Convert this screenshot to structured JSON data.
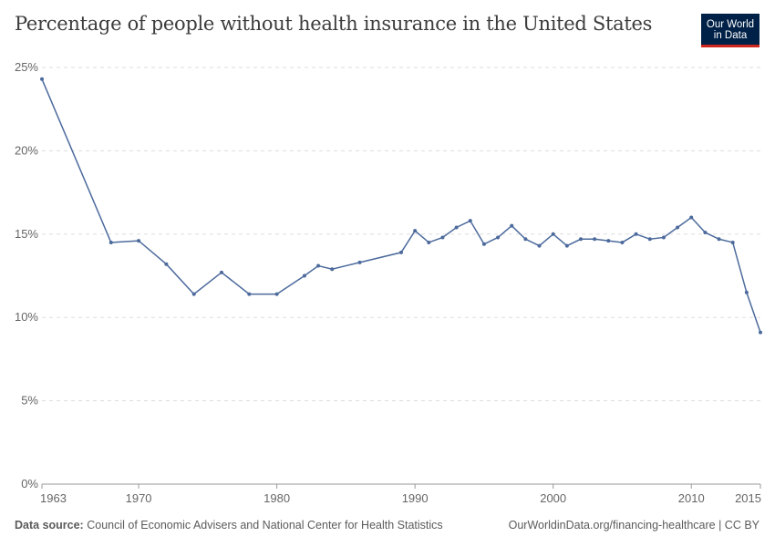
{
  "title": "Percentage of people without health insurance in the United States",
  "logo": {
    "line1": "Our World",
    "line2": "in Data"
  },
  "footer": {
    "source_label": "Data source:",
    "source_text": "Council of Economic Advisers and National Center for Health Statistics",
    "url": "OurWorldinData.org/financing-healthcare | CC BY"
  },
  "colors": {
    "series": "#4c6a9c",
    "grid": "#dddddd",
    "logo_bg": "#002147",
    "logo_accent": "#ce261e"
  },
  "chart_data": {
    "type": "line",
    "title": "Percentage of people without health insurance in the United States",
    "xlim": [
      1963,
      2015
    ],
    "ylim": [
      0,
      25
    ],
    "x_ticks": [
      1963,
      1970,
      1980,
      1990,
      2000,
      2010,
      2015
    ],
    "y_ticks": [
      0,
      5,
      10,
      15,
      20,
      25
    ],
    "y_tick_labels": [
      "0%",
      "5%",
      "10%",
      "15%",
      "20%",
      "25%"
    ],
    "grid": "horizontal dashed",
    "series": [
      {
        "x": [
          1963,
          1968,
          1970,
          1972,
          1974,
          1976,
          1978,
          1980,
          1982,
          1983,
          1984,
          1986,
          1989,
          1990,
          1991,
          1992,
          1993,
          1994,
          1995,
          1996,
          1997,
          1998,
          1999,
          2000,
          2001,
          2002,
          2003,
          2004,
          2005,
          2006,
          2007,
          2008,
          2009,
          2010,
          2011,
          2012,
          2013,
          2014,
          2015
        ],
        "y": [
          24.3,
          14.5,
          14.6,
          13.2,
          11.4,
          12.7,
          11.4,
          11.4,
          12.5,
          13.1,
          12.9,
          13.3,
          13.9,
          15.2,
          14.5,
          14.8,
          15.4,
          15.8,
          14.4,
          14.8,
          15.5,
          14.7,
          14.3,
          15.0,
          14.3,
          14.7,
          14.7,
          14.6,
          14.5,
          15.0,
          14.7,
          14.8,
          15.4,
          16.0,
          15.1,
          14.7,
          14.5,
          11.5,
          9.1
        ]
      }
    ]
  }
}
